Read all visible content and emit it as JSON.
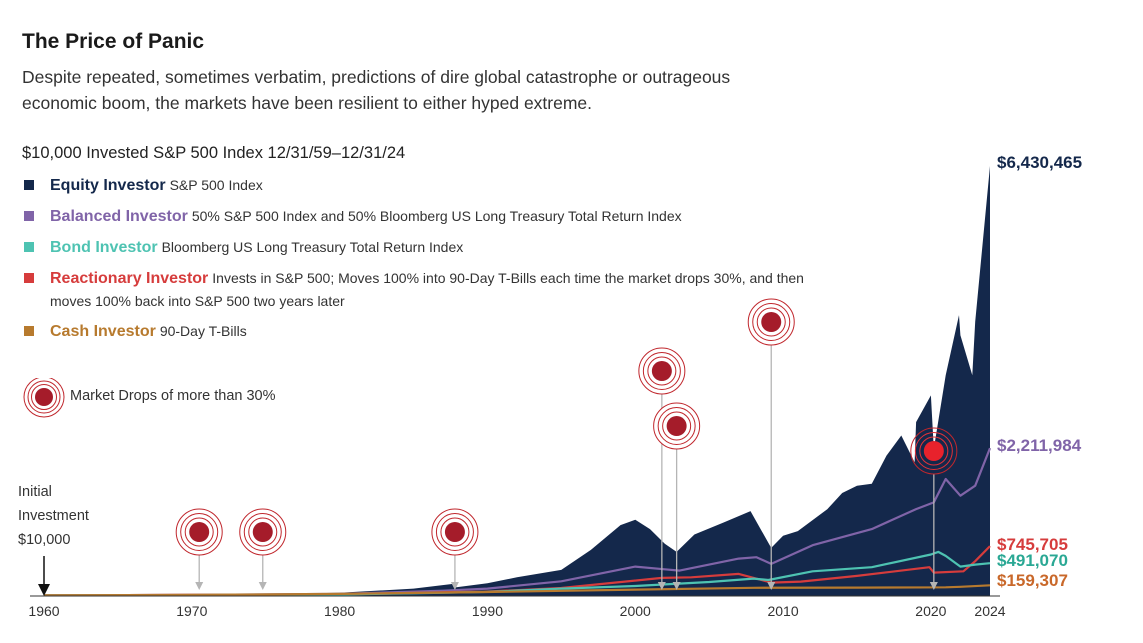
{
  "header": {
    "title": "The Price of Panic",
    "subtitle": "Despite repeated, sometimes verbatim, predictions of dire global catastrophe or outrageous economic boom, the markets have been resilient to either hyped extreme."
  },
  "chart_data": {
    "type": "area",
    "caption": "$10,000 Invested S&P 500 Index 12/31/59–12/31/24",
    "xlim": [
      1960,
      2024
    ],
    "ylim": [
      0,
      6430465
    ],
    "x_ticks": [
      "1960",
      "1970",
      "1980",
      "1990",
      "2000",
      "2010",
      "2020",
      "2024"
    ],
    "initial_label": [
      "Initial",
      "Investment",
      "$10,000"
    ],
    "legend": [
      {
        "name": "Equity Investor",
        "description": "S&P 500 Index",
        "color": "#14284b"
      },
      {
        "name": "Balanced Investor",
        "description": "50% S&P 500 Index and 50% Bloomberg US Long Treasury Total Return Index",
        "color": "#8064a8"
      },
      {
        "name": "Bond Investor",
        "description": "Bloomberg US Long Treasury Total Return Index",
        "color": "#4ec3b2"
      },
      {
        "name": "Reactionary Investor",
        "description": "Invests in S&P 500; Moves 100% into 90-Day T-Bills each time the market drops 30%, and then moves 100% back into S&P 500 two years later",
        "color": "#d63c3c"
      },
      {
        "name": "Cash Investor",
        "description": "90-Day T-Bills",
        "color": "#b77a2e"
      }
    ],
    "market_drops_label": "Market Drops of more than 30%",
    "market_drops": [
      1970.5,
      1974.8,
      1987.8,
      2001.8,
      2002.8,
      2009.2,
      2020.2
    ],
    "series": [
      {
        "name": "Equity Investor",
        "end_label": "$6,430,465",
        "x": [
          1960,
          1965,
          1968,
          1970,
          1972,
          1974,
          1976,
          1980,
          1985,
          1987.6,
          1987.9,
          1990,
          1992,
          1995,
          1997,
          1999,
          2000,
          2001,
          2002,
          2002.8,
          2004,
          2006,
          2007.8,
          2009.2,
          2010,
          2011,
          2013,
          2014,
          2015,
          2016,
          2017,
          2018,
          2018.9,
          2019,
          2020,
          2020.2,
          2021,
          2021.9,
          2022,
          2022.8,
          2023,
          2024
        ],
        "values": [
          10000,
          18000,
          24000,
          21000,
          31000,
          18000,
          32000,
          48000,
          110000,
          180000,
          130000,
          190000,
          280000,
          390000,
          690000,
          1060000,
          1140000,
          1000000,
          780000,
          660000,
          920000,
          1100000,
          1270000,
          720000,
          900000,
          970000,
          1300000,
          1540000,
          1650000,
          1680000,
          2100000,
          2400000,
          2000000,
          2600000,
          3000000,
          2200000,
          3300000,
          4200000,
          3900000,
          3300000,
          4100000,
          6430465
        ]
      },
      {
        "name": "Balanced Investor",
        "end_label": "$2,211,984",
        "x": [
          1960,
          1970,
          1980,
          1987,
          1990,
          1995,
          2000,
          2002,
          2003,
          2007,
          2008.2,
          2009.2,
          2012,
          2016,
          2019,
          2020.2,
          2021,
          2022,
          2023,
          2024
        ],
        "values": [
          10000,
          16000,
          32000,
          80000,
          110000,
          220000,
          440000,
          400000,
          380000,
          560000,
          580000,
          480000,
          760000,
          1000000,
          1300000,
          1400000,
          1750000,
          1500000,
          1650000,
          2211984
        ]
      },
      {
        "name": "Reactionary Investor",
        "end_label": "$745,705",
        "x": [
          1960,
          1970,
          1972.5,
          1974.8,
          1976.8,
          1980,
          1987.8,
          1989.8,
          1995,
          2001.8,
          2003.8,
          2007,
          2009.2,
          2011.2,
          2015,
          2019.9,
          2020.2,
          2022.2,
          2023,
          2024
        ],
        "values": [
          10000,
          16000,
          18000,
          15000,
          17000,
          22000,
          60000,
          64000,
          120000,
          270000,
          280000,
          330000,
          200000,
          215000,
          300000,
          430000,
          350000,
          370000,
          520000,
          745705
        ]
      },
      {
        "name": "Bond Investor",
        "end_label": "$491,070",
        "x": [
          1960,
          1970,
          1980,
          1985,
          1990,
          1995,
          2000,
          2005,
          2008,
          2009,
          2012,
          2016,
          2020,
          2020.5,
          2021,
          2022,
          2023,
          2024
        ],
        "values": [
          10000,
          13000,
          22000,
          40000,
          62000,
          110000,
          150000,
          210000,
          260000,
          240000,
          370000,
          430000,
          620000,
          660000,
          600000,
          440000,
          470000,
          491070
        ]
      },
      {
        "name": "Cash Investor",
        "end_label": "$159,307",
        "x": [
          1960,
          1970,
          1980,
          1990,
          2000,
          2008,
          2015,
          2021,
          2022,
          2024
        ],
        "values": [
          10000,
          17000,
          32000,
          60000,
          95000,
          122000,
          125000,
          130000,
          138000,
          159307
        ]
      }
    ]
  }
}
